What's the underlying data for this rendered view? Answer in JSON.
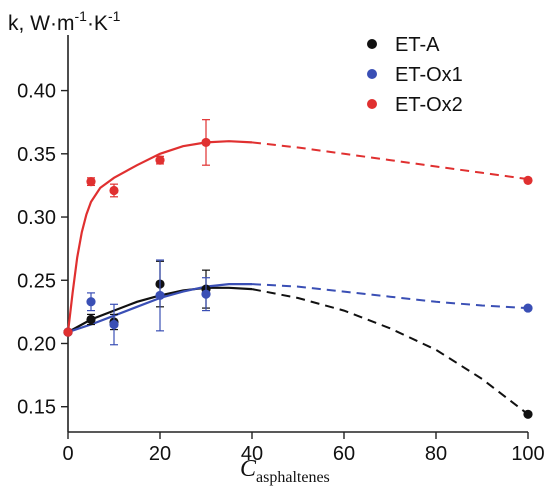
{
  "chart_data": {
    "type": "scatter",
    "ylabel": {
      "base": "k, W·m",
      "exp1": "-1",
      "mid": "·K",
      "exp2": "-1"
    },
    "xlabel": {
      "main": "C",
      "sub": "asphaltenes"
    },
    "xlim": [
      0,
      100
    ],
    "ylim": [
      0.13,
      0.44
    ],
    "xticks": [
      0,
      20,
      40,
      60,
      80,
      100
    ],
    "yticks": [
      0.15,
      0.2,
      0.25,
      0.3,
      0.35,
      0.4
    ],
    "ytick_labels": [
      "0.15",
      "0.20",
      "0.25",
      "0.30",
      "0.35",
      "0.40"
    ],
    "legend_position": "top-right",
    "series": [
      {
        "name": "ET-A",
        "color": "#111111",
        "points": [
          {
            "x": 0,
            "y": 0.209,
            "err": 0
          },
          {
            "x": 5,
            "y": 0.219,
            "err": 0.004
          },
          {
            "x": 10,
            "y": 0.217,
            "err": 0.006
          },
          {
            "x": 20,
            "y": 0.247,
            "err": 0.018
          },
          {
            "x": 30,
            "y": 0.243,
            "err": 0.015
          },
          {
            "x": 100,
            "y": 0.144,
            "err": 0
          }
        ],
        "fit_solid": [
          [
            0,
            0.209
          ],
          [
            5,
            0.219
          ],
          [
            10,
            0.226
          ],
          [
            15,
            0.233
          ],
          [
            20,
            0.238
          ],
          [
            25,
            0.242
          ],
          [
            30,
            0.244
          ],
          [
            35,
            0.244
          ],
          [
            40,
            0.243
          ]
        ],
        "fit_dashed": [
          [
            40,
            0.243
          ],
          [
            50,
            0.236
          ],
          [
            60,
            0.226
          ],
          [
            70,
            0.212
          ],
          [
            80,
            0.195
          ],
          [
            90,
            0.172
          ],
          [
            100,
            0.144
          ]
        ]
      },
      {
        "name": "ET-Ox1",
        "color": "#3a4fb5",
        "points": [
          {
            "x": 0,
            "y": 0.209,
            "err": 0
          },
          {
            "x": 5,
            "y": 0.233,
            "err": 0.007
          },
          {
            "x": 10,
            "y": 0.215,
            "err": 0.016
          },
          {
            "x": 20,
            "y": 0.238,
            "err": 0.028
          },
          {
            "x": 30,
            "y": 0.239,
            "err": 0.013
          },
          {
            "x": 100,
            "y": 0.228,
            "err": 0
          }
        ],
        "fit_solid": [
          [
            0,
            0.209
          ],
          [
            5,
            0.215
          ],
          [
            10,
            0.222
          ],
          [
            15,
            0.229
          ],
          [
            20,
            0.236
          ],
          [
            25,
            0.241
          ],
          [
            30,
            0.245
          ],
          [
            35,
            0.247
          ],
          [
            40,
            0.247
          ]
        ],
        "fit_dashed": [
          [
            40,
            0.247
          ],
          [
            50,
            0.245
          ],
          [
            60,
            0.241
          ],
          [
            70,
            0.237
          ],
          [
            80,
            0.233
          ],
          [
            90,
            0.23
          ],
          [
            100,
            0.228
          ]
        ]
      },
      {
        "name": "ET-Ox2",
        "color": "#e03030",
        "points": [
          {
            "x": 0,
            "y": 0.209,
            "err": 0
          },
          {
            "x": 5,
            "y": 0.328,
            "err": 0.003
          },
          {
            "x": 10,
            "y": 0.321,
            "err": 0.005
          },
          {
            "x": 20,
            "y": 0.345,
            "err": 0.003
          },
          {
            "x": 30,
            "y": 0.359,
            "err": 0.018
          },
          {
            "x": 100,
            "y": 0.329,
            "err": 0
          }
        ],
        "fit_solid": [
          [
            0,
            0.209
          ],
          [
            1,
            0.24
          ],
          [
            2,
            0.268
          ],
          [
            3,
            0.288
          ],
          [
            4,
            0.302
          ],
          [
            5,
            0.312
          ],
          [
            7,
            0.323
          ],
          [
            10,
            0.331
          ],
          [
            15,
            0.341
          ],
          [
            20,
            0.35
          ],
          [
            25,
            0.356
          ],
          [
            30,
            0.359
          ],
          [
            35,
            0.36
          ],
          [
            40,
            0.359
          ]
        ],
        "fit_dashed": [
          [
            40,
            0.359
          ],
          [
            50,
            0.355
          ],
          [
            60,
            0.35
          ],
          [
            70,
            0.345
          ],
          [
            80,
            0.34
          ],
          [
            90,
            0.335
          ],
          [
            100,
            0.33
          ]
        ]
      }
    ]
  }
}
